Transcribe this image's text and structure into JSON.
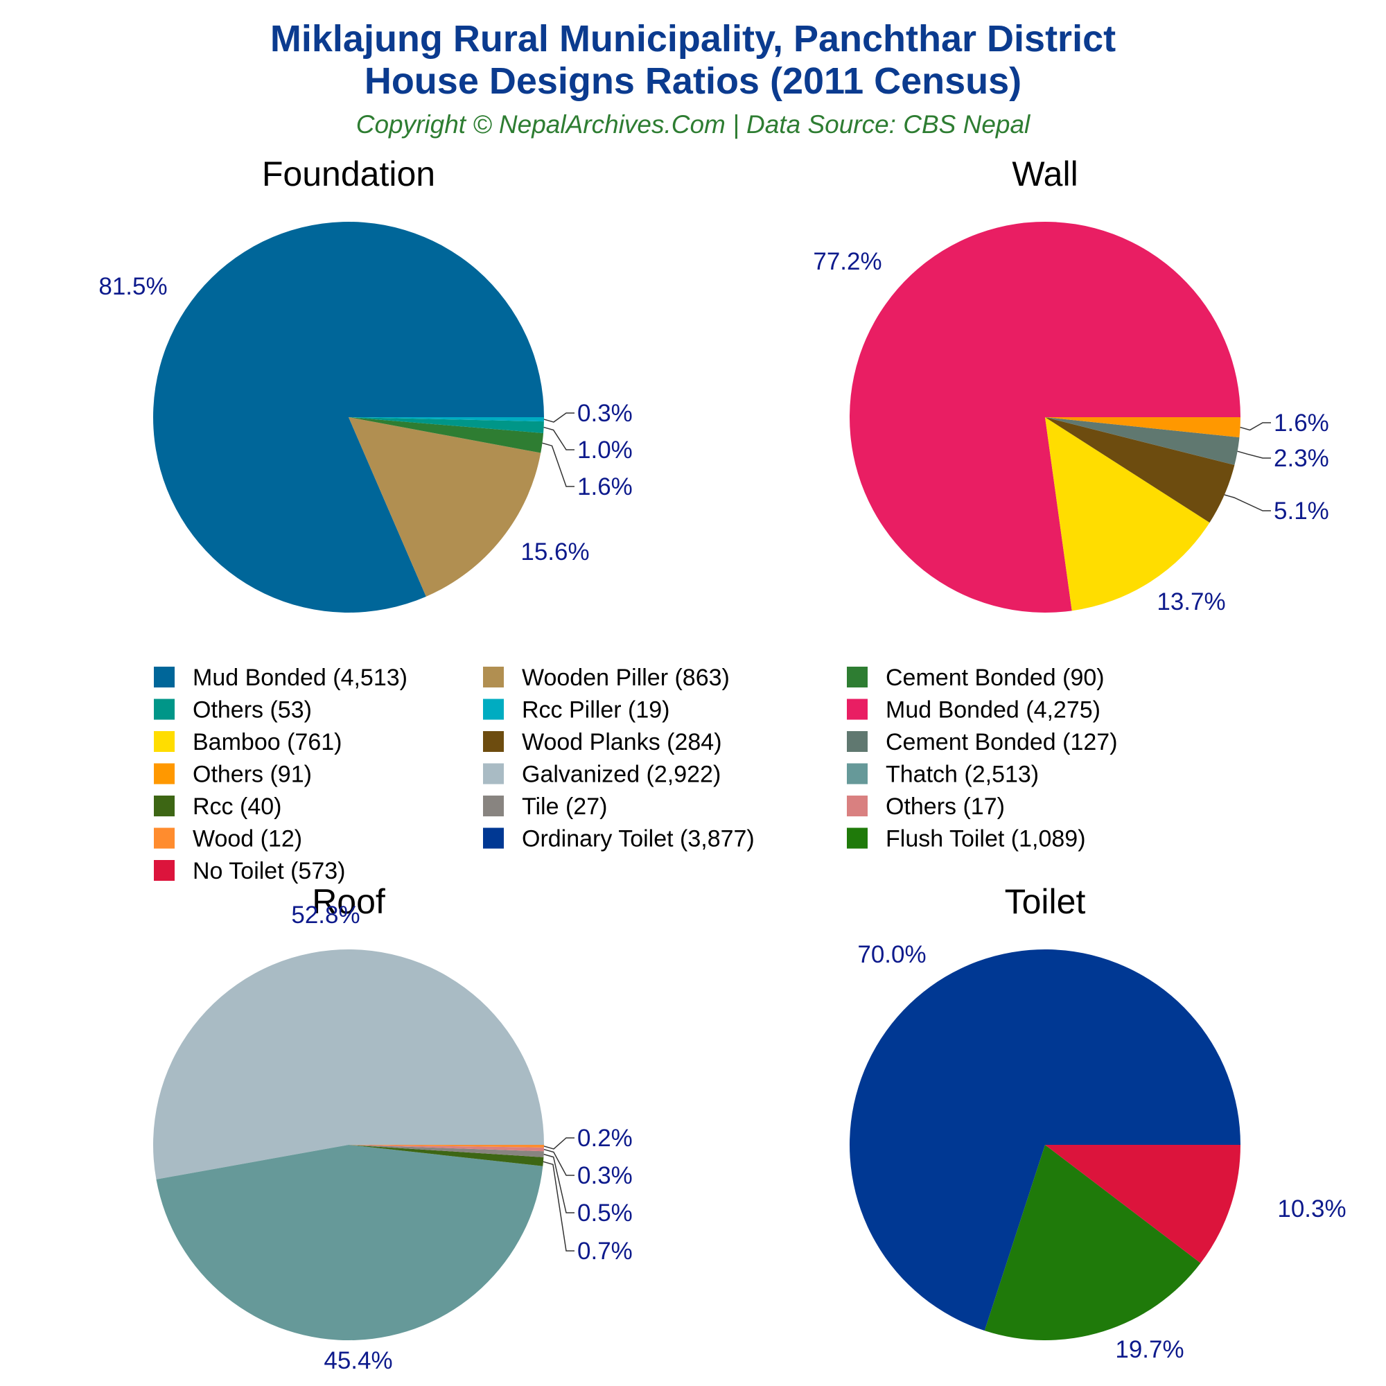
{
  "header": {
    "title_line1": "Miklajung Rural Municipality, Panchthar District",
    "title_line2": "House Designs Ratios (2011 Census)",
    "subtitle": "Copyright © NepalArchives.Com | Data Source: CBS Nepal"
  },
  "chart_data": [
    {
      "type": "pie",
      "title": "Foundation",
      "slices": [
        {
          "label": "Mud Bonded",
          "value": 4513,
          "percent_label": "81.5%",
          "color": "#006699"
        },
        {
          "label": "Wooden Piller",
          "value": 863,
          "percent_label": "15.6%",
          "color": "#b18f51"
        },
        {
          "label": "Cement Bonded",
          "value": 90,
          "percent_label": "1.6%",
          "color": "#2e7d32"
        },
        {
          "label": "Others",
          "value": 53,
          "percent_label": "1.0%",
          "color": "#009688"
        },
        {
          "label": "Rcc Piller",
          "value": 19,
          "percent_label": "0.3%",
          "color": "#00acc1"
        }
      ]
    },
    {
      "type": "pie",
      "title": "Wall",
      "slices": [
        {
          "label": "Mud Bonded",
          "value": 4275,
          "percent_label": "77.2%",
          "color": "#e91e63"
        },
        {
          "label": "Bamboo",
          "value": 761,
          "percent_label": "13.7%",
          "color": "#ffdd00"
        },
        {
          "label": "Wood Planks",
          "value": 284,
          "percent_label": "5.1%",
          "color": "#6d4c0f"
        },
        {
          "label": "Cement Bonded",
          "value": 127,
          "percent_label": "2.3%",
          "color": "#607870"
        },
        {
          "label": "Others",
          "value": 91,
          "percent_label": "1.6%",
          "color": "#ff9800"
        }
      ]
    },
    {
      "type": "pie",
      "title": "Roof",
      "slices": [
        {
          "label": "Galvanized",
          "value": 2922,
          "percent_label": "52.8%",
          "color": "#a9bbc4"
        },
        {
          "label": "Thatch",
          "value": 2513,
          "percent_label": "45.4%",
          "color": "#669999"
        },
        {
          "label": "Rcc",
          "value": 40,
          "percent_label": "0.7%",
          "color": "#3d6614"
        },
        {
          "label": "Tile",
          "value": 27,
          "percent_label": "0.5%",
          "color": "#888480"
        },
        {
          "label": "Others",
          "value": 17,
          "percent_label": "0.3%",
          "color": "#d98080"
        },
        {
          "label": "Wood",
          "value": 12,
          "percent_label": "0.2%",
          "color": "#ff8c2e"
        }
      ]
    },
    {
      "type": "pie",
      "title": "Toilet",
      "slices": [
        {
          "label": "Ordinary Toilet",
          "value": 3877,
          "percent_label": "70.0%",
          "color": "#003893"
        },
        {
          "label": "Flush Toilet",
          "value": 1089,
          "percent_label": "19.7%",
          "color": "#1f7a0a"
        },
        {
          "label": "No Toilet",
          "value": 573,
          "percent_label": "10.3%",
          "color": "#dc143c"
        }
      ]
    }
  ],
  "legend": {
    "items": [
      {
        "text": "Mud Bonded (4,513)",
        "color": "#006699"
      },
      {
        "text": "Wooden Piller (863)",
        "color": "#b18f51"
      },
      {
        "text": "Cement Bonded (90)",
        "color": "#2e7d32"
      },
      {
        "text": "Others (53)",
        "color": "#009688"
      },
      {
        "text": "Rcc Piller (19)",
        "color": "#00acc1"
      },
      {
        "text": "Mud Bonded (4,275)",
        "color": "#e91e63"
      },
      {
        "text": "Bamboo (761)",
        "color": "#ffdd00"
      },
      {
        "text": "Wood Planks (284)",
        "color": "#6d4c0f"
      },
      {
        "text": "Cement Bonded (127)",
        "color": "#607870"
      },
      {
        "text": "Others (91)",
        "color": "#ff9800"
      },
      {
        "text": "Galvanized (2,922)",
        "color": "#a9bbc4"
      },
      {
        "text": "Thatch (2,513)",
        "color": "#669999"
      },
      {
        "text": "Rcc (40)",
        "color": "#3d6614"
      },
      {
        "text": "Tile (27)",
        "color": "#888480"
      },
      {
        "text": "Others (17)",
        "color": "#d98080"
      },
      {
        "text": "Wood (12)",
        "color": "#ff8c2e"
      },
      {
        "text": "Ordinary Toilet (3,877)",
        "color": "#003893"
      },
      {
        "text": "Flush Toilet (1,089)",
        "color": "#1f7a0a"
      },
      {
        "text": "No Toilet (573)",
        "color": "#dc143c"
      }
    ]
  }
}
